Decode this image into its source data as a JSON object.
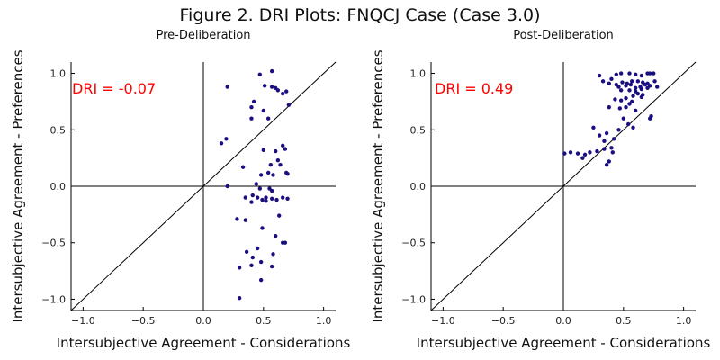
{
  "figure_title": "Figure 2. DRI Plots: FNQCJ Case (Case 3.0)",
  "colors": {
    "points": "#1a0f80",
    "annotation": "#ff0000",
    "lines": "#000000"
  },
  "chart_data": [
    {
      "type": "scatter",
      "title": "Pre-Deliberation",
      "xlabel": "Intersubjective Agreement - Considerations",
      "ylabel": "Intersubjective Agreement - Preferences",
      "xlim": [
        -1.1,
        1.1
      ],
      "ylim": [
        -1.1,
        1.1
      ],
      "xticks": [
        -1.0,
        -0.5,
        0.0,
        0.5,
        1.0
      ],
      "xtick_labels": [
        "−1.0",
        "−0.5",
        "0.0",
        "0.5",
        "1.0"
      ],
      "yticks": [
        -1.0,
        -0.5,
        0.0,
        0.5,
        1.0
      ],
      "ytick_labels": [
        "−1.0",
        "−0.5",
        "0.0",
        "0.5",
        "1.0"
      ],
      "reference_lines": [
        "x=0",
        "y=0",
        "y=x"
      ],
      "annotation": "DRI = -0.07",
      "grid": false,
      "x": [
        0.47,
        0.57,
        0.2,
        0.51,
        0.57,
        0.6,
        0.62,
        0.66,
        0.69,
        0.42,
        0.71,
        0.4,
        0.5,
        0.54,
        0.4,
        0.15,
        0.19,
        0.5,
        0.66,
        0.68,
        0.6,
        0.62,
        0.56,
        0.64,
        0.33,
        0.48,
        0.54,
        0.58,
        0.69,
        0.7,
        0.44,
        0.47,
        0.55,
        0.57,
        0.35,
        0.52,
        0.2,
        0.41,
        0.45,
        0.49,
        0.52,
        0.57,
        0.61,
        0.66,
        0.7,
        0.4,
        0.63,
        0.28,
        0.35,
        0.49,
        0.6,
        0.66,
        0.45,
        0.36,
        0.58,
        0.41,
        0.68,
        0.48,
        0.4,
        0.57,
        0.3,
        0.48,
        0.3
      ],
      "y": [
        0.99,
        1.02,
        0.88,
        0.89,
        0.88,
        0.87,
        0.85,
        0.82,
        0.84,
        0.75,
        0.72,
        0.7,
        0.67,
        0.6,
        0.6,
        0.38,
        0.42,
        0.32,
        0.36,
        0.33,
        0.31,
        0.23,
        0.19,
        0.19,
        0.17,
        0.1,
        0.12,
        0.1,
        0.12,
        0.11,
        0.02,
        -0.02,
        -0.02,
        -0.04,
        -0.1,
        -0.1,
        0.0,
        -0.08,
        -0.1,
        -0.12,
        -0.13,
        -0.11,
        -0.12,
        -0.1,
        -0.11,
        -0.14,
        -0.26,
        -0.29,
        -0.3,
        -0.37,
        -0.44,
        -0.5,
        -0.55,
        -0.58,
        -0.6,
        -0.63,
        -0.5,
        -0.67,
        -0.7,
        -0.71,
        -0.72,
        -0.83,
        -0.99
      ]
    },
    {
      "type": "scatter",
      "title": "Post-Deliberation",
      "xlabel": "Intersubjective Agreement - Considerations",
      "ylabel": "Intersubjective Agreement - Preferences",
      "xlim": [
        -1.1,
        1.1
      ],
      "ylim": [
        -1.1,
        1.1
      ],
      "xticks": [
        -1.0,
        -0.5,
        0.0,
        0.5,
        1.0
      ],
      "xtick_labels": [
        "−1.0",
        "−0.5",
        "0.0",
        "0.5",
        "1.0"
      ],
      "yticks": [
        -1.0,
        -0.5,
        0.0,
        0.5,
        1.0
      ],
      "ytick_labels": [
        "−1.0",
        "−0.5",
        "0.0",
        "0.5",
        "1.0"
      ],
      "reference_lines": [
        "x=0",
        "y=0",
        "y=x"
      ],
      "annotation": "DRI = 0.49",
      "grid": false,
      "x": [
        0.3,
        0.4,
        0.44,
        0.48,
        0.55,
        0.6,
        0.65,
        0.7,
        0.72,
        0.75,
        0.33,
        0.38,
        0.44,
        0.49,
        0.53,
        0.57,
        0.62,
        0.66,
        0.7,
        0.76,
        0.46,
        0.52,
        0.56,
        0.6,
        0.64,
        0.68,
        0.72,
        0.78,
        0.48,
        0.55,
        0.6,
        0.65,
        0.7,
        0.58,
        0.62,
        0.66,
        0.43,
        0.48,
        0.52,
        0.57,
        0.65,
        0.38,
        0.47,
        0.52,
        0.55,
        0.6,
        0.73,
        0.72,
        0.5,
        0.54,
        0.58,
        0.25,
        0.3,
        0.36,
        0.42,
        0.46,
        0.34,
        0.4,
        0.01,
        0.06,
        0.12,
        0.18,
        0.22,
        0.28,
        0.34,
        0.41,
        0.16,
        0.38,
        0.36
      ],
      "y": [
        0.98,
        0.95,
        0.99,
        1.0,
        1.0,
        0.99,
        0.98,
        1.0,
        1.0,
        1.0,
        0.93,
        0.91,
        0.9,
        0.92,
        0.91,
        0.93,
        0.93,
        0.92,
        0.91,
        0.93,
        0.88,
        0.89,
        0.9,
        0.87,
        0.88,
        0.9,
        0.89,
        0.88,
        0.85,
        0.85,
        0.84,
        0.86,
        0.87,
        0.8,
        0.82,
        0.81,
        0.77,
        0.76,
        0.78,
        0.75,
        0.79,
        0.7,
        0.69,
        0.7,
        0.73,
        0.67,
        0.62,
        0.6,
        0.6,
        0.55,
        0.52,
        0.52,
        0.45,
        0.47,
        0.42,
        0.5,
        0.4,
        0.34,
        0.29,
        0.3,
        0.29,
        0.28,
        0.3,
        0.31,
        0.33,
        0.3,
        0.25,
        0.22,
        0.19
      ]
    }
  ]
}
